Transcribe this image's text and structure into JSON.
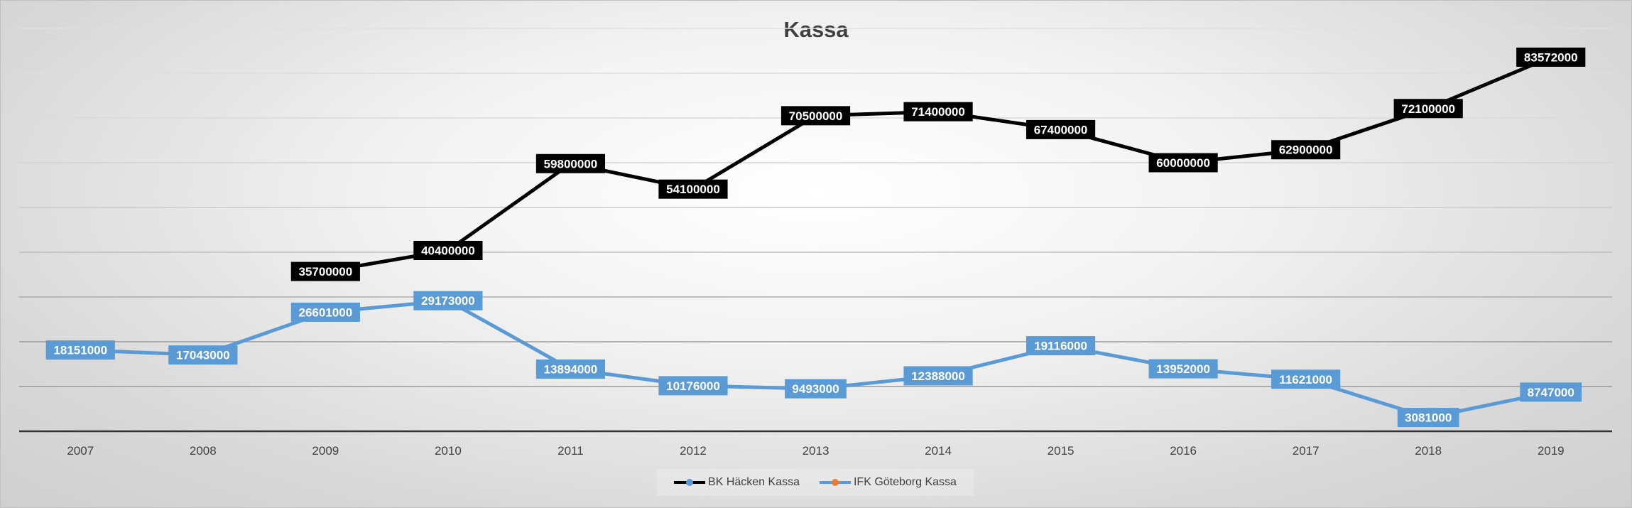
{
  "chart_data": {
    "type": "line",
    "title": "Kassa",
    "categories": [
      "2007",
      "2008",
      "2009",
      "2010",
      "2011",
      "2012",
      "2013",
      "2014",
      "2015",
      "2016",
      "2017",
      "2018",
      "2019"
    ],
    "ylim": [
      0,
      90000000
    ],
    "grid": true,
    "legend_position": "bottom",
    "series": [
      {
        "name": "BK Häcken Kassa",
        "values": [
          null,
          null,
          35700000,
          40400000,
          59800000,
          54100000,
          70500000,
          71400000,
          67400000,
          60000000,
          62900000,
          72100000,
          83572000
        ],
        "line_color": "#000000",
        "marker_color": "#5b9bd5",
        "label_bg": "#000000",
        "label_color": "#ffffff"
      },
      {
        "name": "IFK Göteborg Kassa",
        "values": [
          18151000,
          17043000,
          26601000,
          29173000,
          13894000,
          10176000,
          9493000,
          12388000,
          19116000,
          13952000,
          11621000,
          3081000,
          8747000
        ],
        "line_color": "#5b9bd5",
        "marker_color": "#ed7d31",
        "label_bg": "#5b9bd5",
        "label_color": "#ffffff"
      }
    ]
  }
}
